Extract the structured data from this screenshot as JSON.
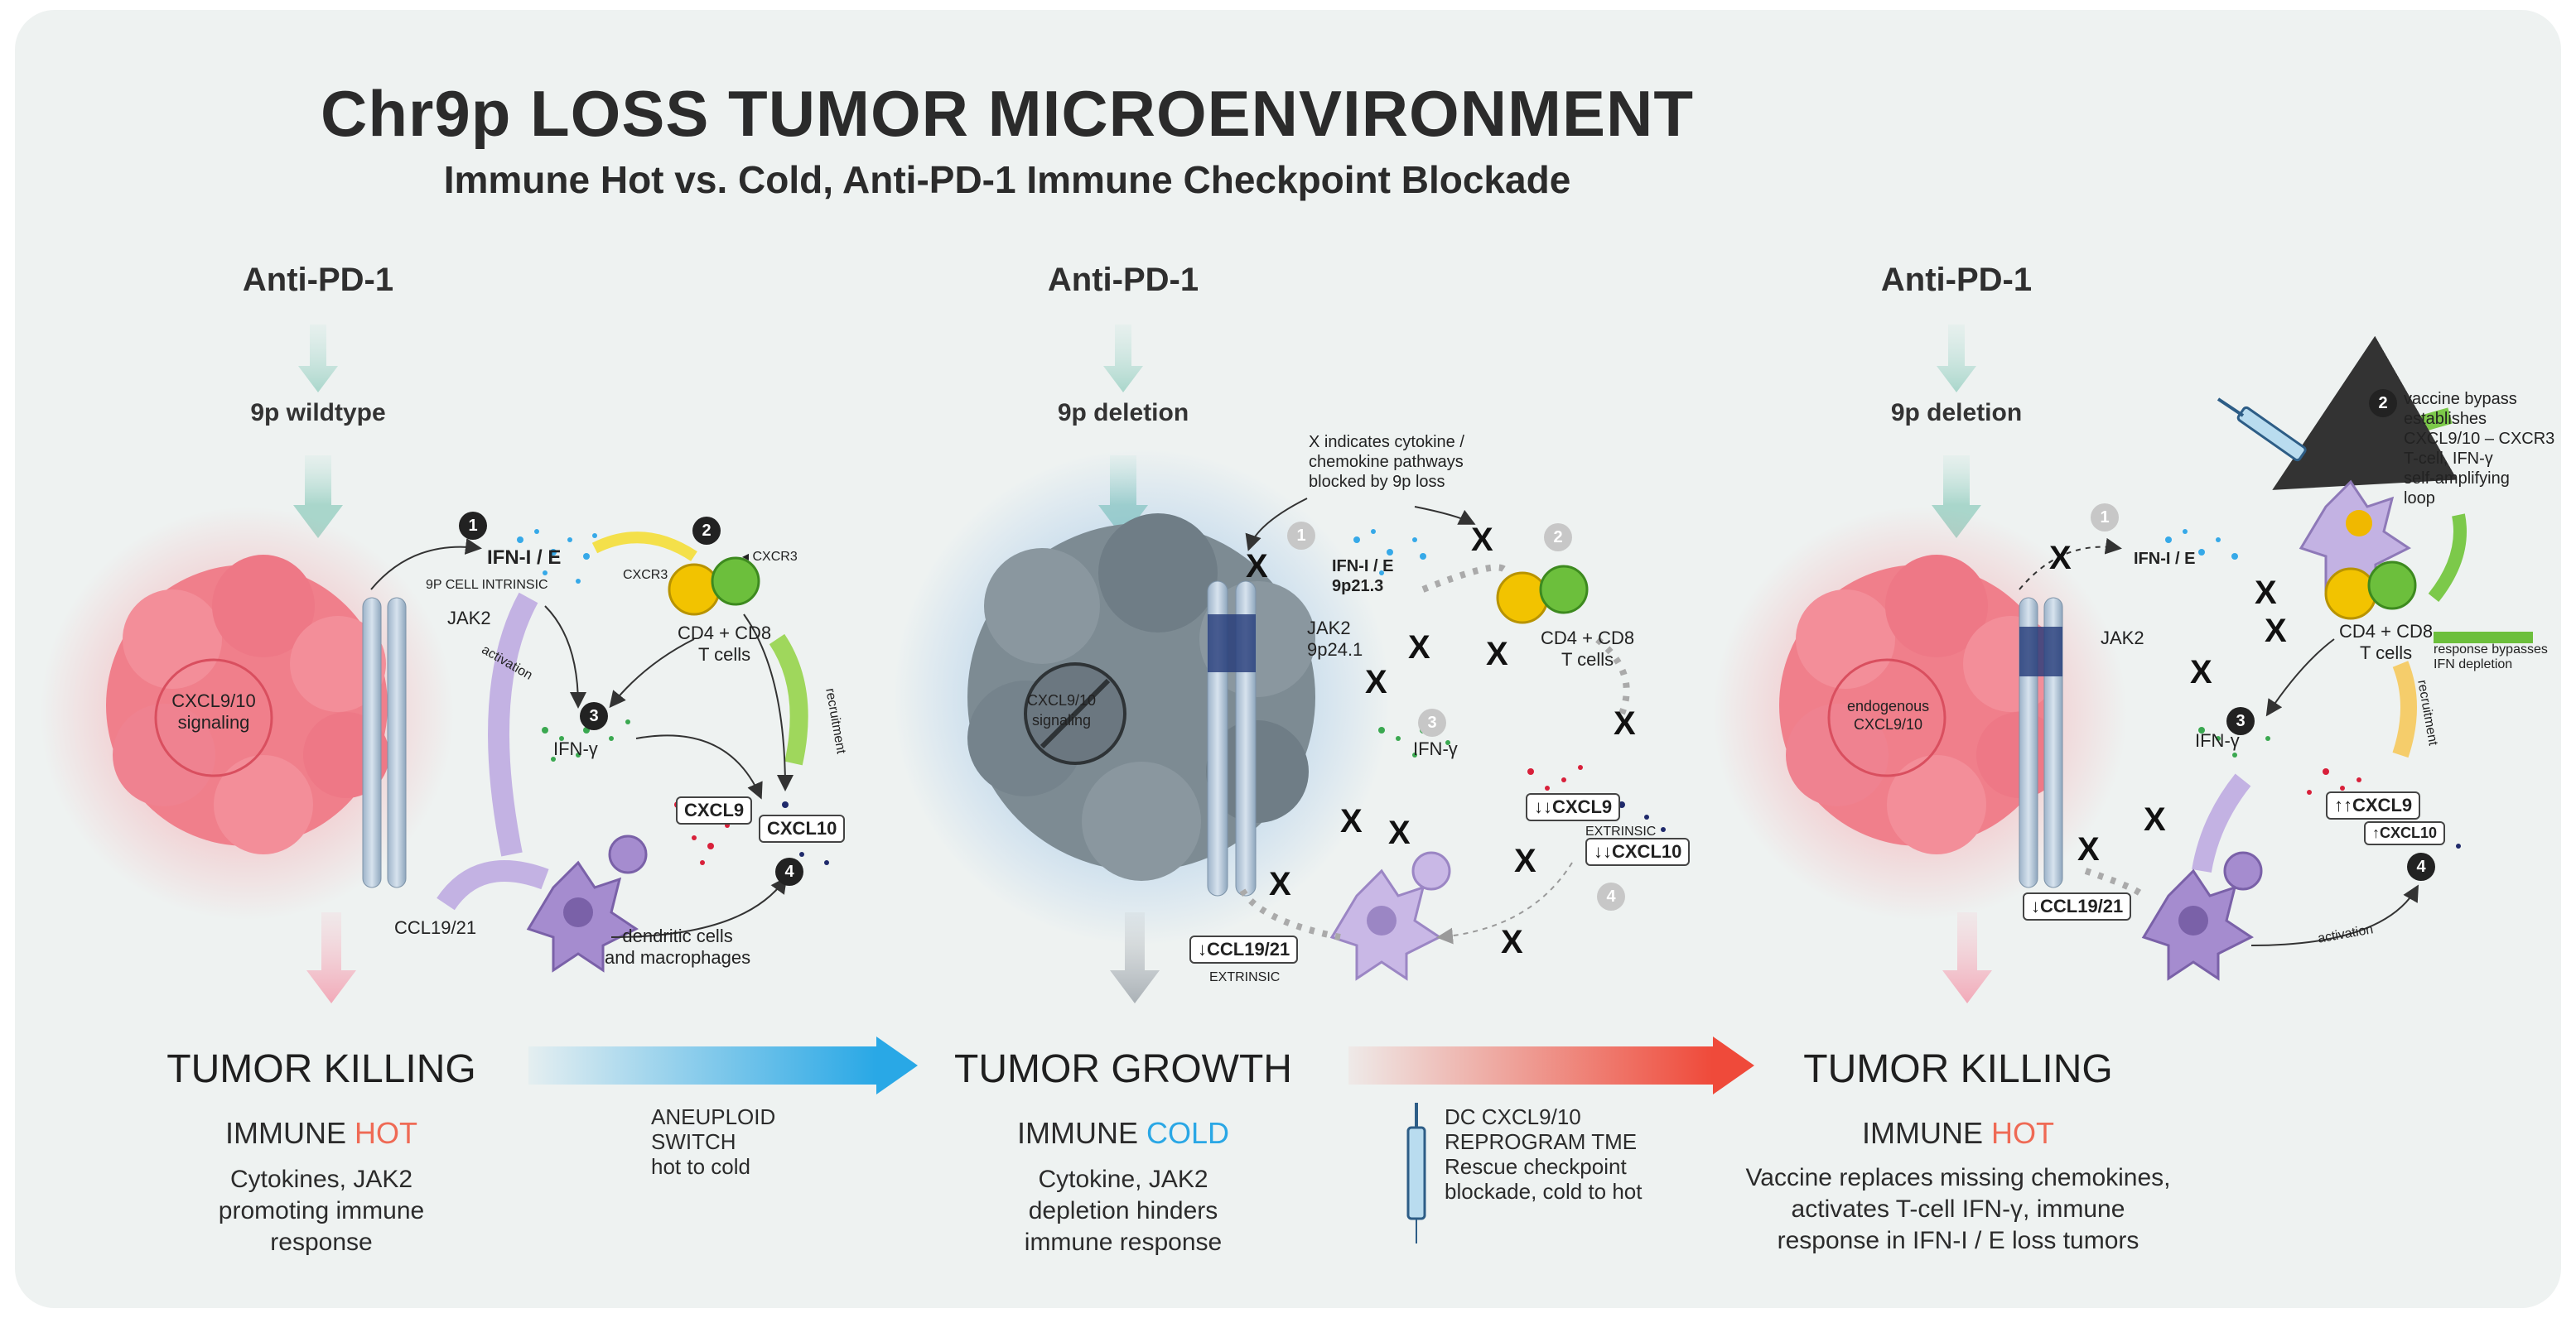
{
  "header": {
    "title": "Chr9p LOSS TUMOR MICROENVIRONMENT",
    "subtitle": "Immune Hot vs. Cold, Anti-PD-1 Immune Checkpoint Blockade"
  },
  "panels": [
    {
      "drug": "Anti-PD-1",
      "genotype": "9p wildtype",
      "tumor_label": "CXCL9/10\nsignaling",
      "labels": {
        "ifn": "IFN-I / E",
        "intrinsic": "9P CELL INTRINSIC",
        "jak2": "JAK2",
        "cxcr3_left": "CXCR3",
        "cxcr3_right": "◂ CXCR3",
        "tcells": "CD4 + CD8\nT cells",
        "ifng": "IFN-γ",
        "cxcl9": "CXCL9",
        "cxcl10": "CXCL10",
        "ccl": "CCL19/21",
        "dc": "dendritic cells\nand macrophages",
        "activation": "activation",
        "recruitment": "recruitment"
      },
      "steps": [
        "1",
        "2",
        "3",
        "4"
      ],
      "outcome": "TUMOR KILLING",
      "immune_prefix": "IMMUNE",
      "immune_state": "HOT",
      "description": "Cytokines, JAK2\npromoting immune\nresponse"
    },
    {
      "drug": "Anti-PD-1",
      "genotype": "9p deletion",
      "tumor_label": "CXCL9/10\nsignaling",
      "note": "X indicates cytokine /\nchemokine pathways\nblocked by 9p loss",
      "labels": {
        "ifn": "IFN-I / E\n9p21.3",
        "jak2": "JAK2\n9p24.1",
        "tcells": "CD4 + CD8\nT cells",
        "ifng": "IFN-γ",
        "cxcl9": "↓↓CXCL9",
        "extrinsic": "EXTRINSIC",
        "cxcl10": "↓↓CXCL10",
        "ccl": "↓CCL19/21",
        "extrinsic2": "EXTRINSIC"
      },
      "steps": [
        "1",
        "2",
        "3",
        "4"
      ],
      "x_marks": [
        "X",
        "X",
        "X",
        "X",
        "X",
        "X",
        "X",
        "X",
        "X",
        "X",
        "X"
      ],
      "outcome": "TUMOR GROWTH",
      "immune_prefix": "IMMUNE",
      "immune_state": "COLD",
      "description": "Cytokine, JAK2\ndepletion hinders\nimmune response"
    },
    {
      "drug": "Anti-PD-1",
      "genotype": "9p deletion",
      "tumor_label": "endogenous\nCXCL9/10",
      "note": "vaccine bypass\nestablishes\nCXCL9/10 – CXCR3\nT-cell, IFN-γ\nself-amplifying\nloop",
      "labels": {
        "ifn": "IFN-I / E",
        "jak2": "JAK2",
        "tcells": "CD4 + CD8\nT cells",
        "bypass": "response bypasses\nIFN depletion",
        "ifng": "IFN-γ",
        "cxcl9": "↑↑CXCL9",
        "cxcl10": "↑CXCL10",
        "ccl": "↓CCL19/21",
        "activation": "activation",
        "recruitment": "recruitment"
      },
      "steps": [
        "1",
        "2",
        "3",
        "4"
      ],
      "x_marks": [
        "X",
        "X",
        "X",
        "X",
        "X",
        "X"
      ],
      "outcome": "TUMOR KILLING",
      "immune_prefix": "IMMUNE",
      "immune_state": "HOT",
      "description": "Vaccine replaces missing chemokines,\nactivates T-cell IFN-γ, immune\nresponse in IFN-I / E loss tumors"
    }
  ],
  "transitions": [
    {
      "label": "ANEUPLOID\nSWITCH\nhot to cold",
      "color": "#29a8e6"
    },
    {
      "label": "DC CXCL9/10\nREPROGRAM TME\nRescue checkpoint\nblockade, cold to hot",
      "color": "#ef4a3a"
    }
  ],
  "colors": {
    "hot": "#ef6a55",
    "cold": "#2aa7e5",
    "tumor_hot": "#f28b95",
    "tumor_cold": "#7d8b93",
    "dc": "#a58ccf",
    "tcell_yellow": "#f2c300",
    "tcell_green": "#6cbf3c"
  }
}
